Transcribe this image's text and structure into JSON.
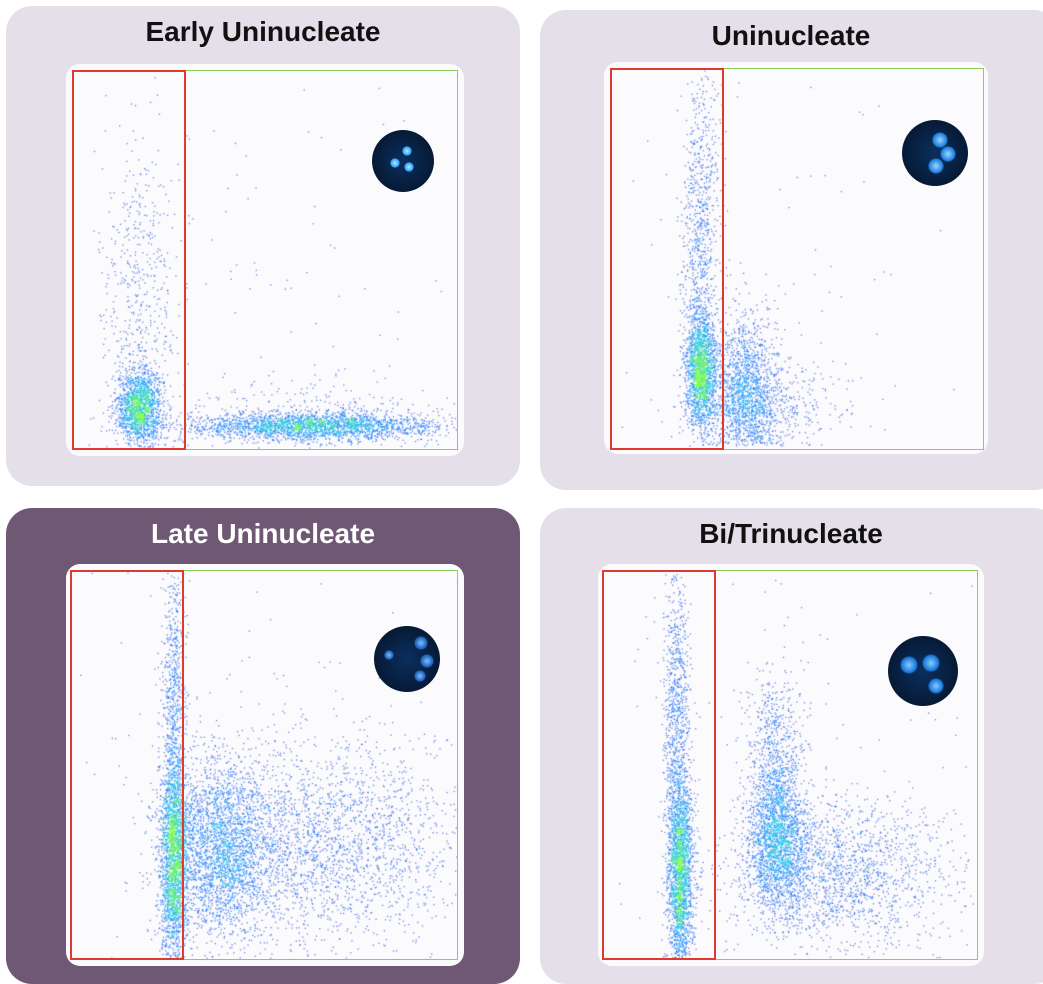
{
  "colors": {
    "panel_light": "#e4dfe9",
    "panel_dark": "#6e5873",
    "title_dark": "#111111",
    "title_light": "#ffffff",
    "gate_red": "#e03a2e",
    "frame_green": "#8ccc5a",
    "density_low": "#1a1aa8",
    "density_mid": "#1e90ff",
    "density_high": "#7fff3a"
  },
  "panels": [
    {
      "title": "Early Uninucleate",
      "theme": "light",
      "inset": "early-uninucleate-microspore-icon"
    },
    {
      "title": "Uninucleate",
      "theme": "light",
      "inset": "uninucleate-microspore-icon"
    },
    {
      "title": "Late Uninucleate",
      "theme": "dark",
      "inset": "late-uninucleate-microspore-icon"
    },
    {
      "title": "Bi/Trinucleate",
      "theme": "light",
      "inset": "bi-trinucleate-microspore-icon"
    }
  ],
  "chart_data": [
    {
      "type": "scatter",
      "title": "Early Uninucleate",
      "xlabel": "",
      "ylabel": "",
      "xlim": [
        0,
        100
      ],
      "ylim": [
        0,
        100
      ],
      "gate": {
        "x_range": [
          0,
          28
        ],
        "color": "red"
      },
      "series": [
        {
          "clusters": [
            {
              "cx": 17,
              "cy": 11,
              "sx": 3,
              "sy": 5,
              "n": 1500
            },
            {
              "cx": 17,
              "cy": 40,
              "sx": 5,
              "sy": 22,
              "n": 500
            },
            {
              "cx": 62,
              "cy": 6,
              "sx": 17,
              "sy": 1.8,
              "n": 2200
            },
            {
              "cx": 62,
              "cy": 8,
              "sx": 22,
              "sy": 5,
              "n": 400
            },
            {
              "cx": 50,
              "cy": 50,
              "sx": 40,
              "sy": 40,
              "n": 120
            }
          ]
        }
      ]
    },
    {
      "type": "scatter",
      "title": "Uninucleate",
      "xlabel": "",
      "ylabel": "",
      "xlim": [
        0,
        100
      ],
      "ylim": [
        0,
        100
      ],
      "gate": {
        "x_range": [
          0,
          29
        ],
        "color": "red"
      },
      "series": [
        {
          "clusters": [
            {
              "cx": 24,
              "cy": 20,
              "sx": 2.2,
              "sy": 8,
              "n": 1600
            },
            {
              "cx": 24,
              "cy": 55,
              "sx": 2.5,
              "sy": 25,
              "n": 900
            },
            {
              "cx": 36,
              "cy": 15,
              "sx": 4.5,
              "sy": 10,
              "n": 1500
            },
            {
              "cx": 42,
              "cy": 10,
              "sx": 10,
              "sy": 6,
              "n": 500
            },
            {
              "cx": 50,
              "cy": 50,
              "sx": 40,
              "sy": 40,
              "n": 80
            }
          ]
        }
      ]
    },
    {
      "type": "scatter",
      "title": "Late Uninucleate",
      "xlabel": "",
      "ylabel": "",
      "xlim": [
        0,
        100
      ],
      "ylim": [
        0,
        100
      ],
      "gate": {
        "x_range": [
          0,
          29
        ],
        "color": "red"
      },
      "series": [
        {
          "clusters": [
            {
              "cx": 26,
              "cy": 25,
              "sx": 1.8,
              "sy": 14,
              "n": 2000
            },
            {
              "cx": 26,
              "cy": 65,
              "sx": 1.6,
              "sy": 20,
              "n": 700
            },
            {
              "cx": 38,
              "cy": 28,
              "sx": 7,
              "sy": 12,
              "n": 2500
            },
            {
              "cx": 65,
              "cy": 30,
              "sx": 18,
              "sy": 13,
              "n": 2400
            },
            {
              "cx": 50,
              "cy": 50,
              "sx": 40,
              "sy": 40,
              "n": 150
            }
          ]
        }
      ]
    },
    {
      "type": "scatter",
      "title": "Bi/Trinucleate",
      "xlabel": "",
      "ylabel": "",
      "xlim": [
        0,
        100
      ],
      "ylim": [
        0,
        100
      ],
      "gate": {
        "x_range": [
          0,
          30
        ],
        "color": "red"
      },
      "series": [
        {
          "clusters": [
            {
              "cx": 20,
              "cy": 22,
              "sx": 1.8,
              "sy": 13,
              "n": 2000
            },
            {
              "cx": 19,
              "cy": 60,
              "sx": 1.8,
              "sy": 22,
              "n": 900
            },
            {
              "cx": 46,
              "cy": 30,
              "sx": 4,
              "sy": 9,
              "n": 1600
            },
            {
              "cx": 46,
              "cy": 50,
              "sx": 4,
              "sy": 12,
              "n": 800
            },
            {
              "cx": 62,
              "cy": 22,
              "sx": 15,
              "sy": 10,
              "n": 1800
            },
            {
              "cx": 50,
              "cy": 50,
              "sx": 40,
              "sy": 40,
              "n": 120
            }
          ]
        }
      ]
    }
  ]
}
